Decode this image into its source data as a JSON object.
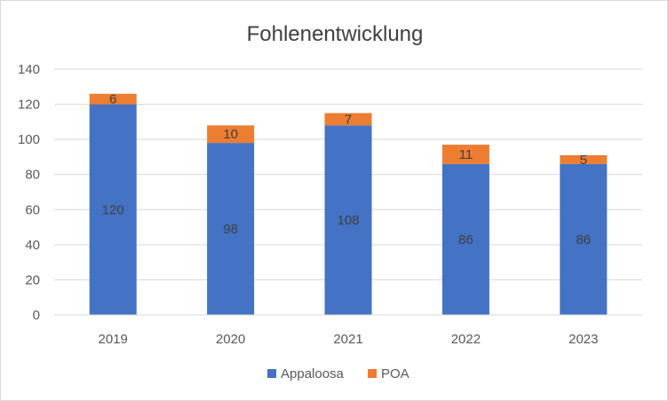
{
  "chart_data": {
    "type": "bar",
    "stacked": true,
    "title": "Fohlenentwicklung",
    "xlabel": "",
    "ylabel": "",
    "categories": [
      "2019",
      "2020",
      "2021",
      "2022",
      "2023"
    ],
    "series": [
      {
        "name": "Appaloosa",
        "values": [
          120,
          98,
          108,
          86,
          86
        ],
        "color": "#4472c4"
      },
      {
        "name": "POA",
        "values": [
          6,
          10,
          7,
          11,
          5
        ],
        "color": "#ed7d31"
      }
    ],
    "ylim": [
      0,
      140
    ],
    "yticks": [
      "0",
      "20",
      "40",
      "60",
      "80",
      "100",
      "120",
      "140"
    ],
    "grid": true,
    "data_labels": true,
    "legend_position": "bottom"
  }
}
